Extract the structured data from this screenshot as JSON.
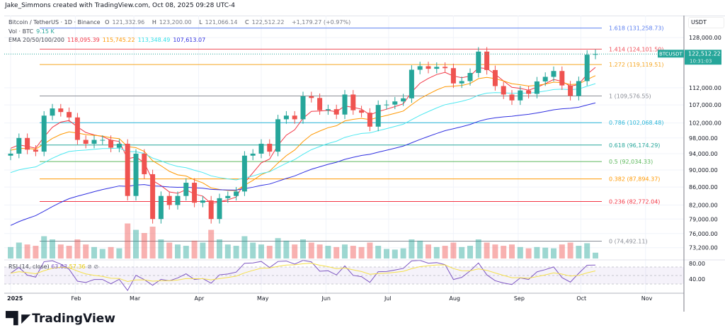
{
  "credit": "Jake_Simmons created with TradingView.com, Oct 08, 2025 09:28 UTC-4",
  "legend": {
    "symbol": "Bitcoin / TetherUS · 1D · Binance",
    "o_label": "O",
    "o": "121,332.96",
    "h_label": "H",
    "h": "123,200.00",
    "l_label": "L",
    "l": "121,066.14",
    "c_label": "C",
    "c": "122,512.22",
    "change": "+1,179.27 (+0.97%)",
    "vol_label": "Vol · BTC",
    "vol": "9.15 K",
    "ema_label": "EMA 20/50/100/200",
    "ema20": "118,095.39",
    "ema50": "115,745.22",
    "ema100": "113,348.49",
    "ema200": "107,613.07",
    "rsi_label": "RSI (14, close)",
    "rsi": "63.63",
    "rsi_ma": "57.36"
  },
  "colors": {
    "up": "#26a69a",
    "down": "#ef5350",
    "ema20": "#f23645",
    "ema50": "#ff9800",
    "ema100": "#4de8f0",
    "ema200": "#3030e0",
    "rsi": "#7e57c2",
    "rsi_ma": "#f5e04a"
  },
  "axis": {
    "currency": "USDT",
    "price_tag": "122,512.22",
    "countdown": "10:31:03",
    "ticker": "BTCUSDT",
    "brand": "TradingView"
  },
  "chart_data": {
    "type": "candlestick",
    "yscale": "log",
    "grid": true,
    "price_ticks": [
      "128,000.00",
      "112,000.00",
      "107,000.00",
      "102,000.00",
      "98,000.00",
      "94,000.00",
      "90,000.00",
      "86,000.00",
      "82,000.00",
      "79,000.00",
      "76,000.00",
      "73,200.00"
    ],
    "price_tick_values": [
      128000,
      112000,
      107000,
      102000,
      98000,
      94000,
      90000,
      86000,
      82000,
      79000,
      76000,
      73200
    ],
    "rsi_ticks": [
      "80.00",
      "40.00"
    ],
    "x_ticks": [
      "2025",
      "Feb",
      "Mar",
      "Apr",
      "May",
      "Jun",
      "Jul",
      "Aug",
      "Sep",
      "Oct",
      "Nov"
    ],
    "x_tick_dates": [
      "2025-01-01",
      "2025-02-01",
      "2025-03-01",
      "2025-04-01",
      "2025-05-01",
      "2025-06-01",
      "2025-07-01",
      "2025-08-01",
      "2025-09-01",
      "2025-10-01",
      "2025-11-01"
    ],
    "candle_interval_days": 4,
    "first_date": "2025-01-01",
    "closes": [
      94000,
      98000,
      95000,
      94500,
      104000,
      106000,
      105000,
      103500,
      97500,
      96500,
      97500,
      97500,
      95500,
      96500,
      84000,
      94000,
      89000,
      79000,
      84000,
      82000,
      84000,
      87000,
      82500,
      83000,
      79000,
      83500,
      84000,
      85000,
      93500,
      94000,
      96500,
      94500,
      103000,
      104000,
      103000,
      109500,
      109000,
      105500,
      105800,
      104300,
      110000,
      105500,
      104800,
      101000,
      107000,
      107100,
      108000,
      108900,
      117500,
      118600,
      117800,
      118400,
      118000,
      113300,
      114000,
      116500,
      123300,
      117400,
      112500,
      110000,
      108300,
      111200,
      110200,
      113900,
      115300,
      117100,
      112700,
      109600,
      114000,
      122300,
      122512
    ],
    "volumes_k": [
      18,
      25,
      22,
      20,
      35,
      30,
      22,
      20,
      30,
      22,
      18,
      15,
      18,
      16,
      55,
      45,
      40,
      50,
      30,
      25,
      22,
      20,
      28,
      25,
      45,
      30,
      22,
      20,
      35,
      25,
      22,
      20,
      32,
      28,
      22,
      30,
      25,
      22,
      20,
      18,
      22,
      20,
      18,
      25,
      20,
      15,
      14,
      16,
      30,
      28,
      22,
      18,
      20,
      25,
      18,
      20,
      30,
      25,
      22,
      20,
      22,
      18,
      16,
      18,
      17,
      16,
      22,
      25,
      20,
      24,
      9.15
    ],
    "fib_levels": [
      {
        "label": "1.618 (131,258.73)",
        "price": 131258.73,
        "color": "#5b7ff0"
      },
      {
        "label": "1.414 (124,101.50)",
        "price": 124101.5,
        "color": "#f0505a"
      },
      {
        "label": "1.272 (119,119.51)",
        "price": 119119.51,
        "color": "#f5a623"
      },
      {
        "label": "1 (109,576.55)",
        "price": 109576.55,
        "color": "#8a8d96"
      },
      {
        "label": "0.786 (102,068.48)",
        "price": 102068.48,
        "color": "#29b6d8"
      },
      {
        "label": "0.618 (96,174.29)",
        "price": 96174.29,
        "color": "#26a69a"
      },
      {
        "label": "0.5 (92,034.33)",
        "price": 92034.33,
        "color": "#5cb85c"
      },
      {
        "label": "0.382 (87,894.37)",
        "price": 87894.37,
        "color": "#ff9800"
      },
      {
        "label": "0.236 (82,772.04)",
        "price": 82772.04,
        "color": "#f23645"
      },
      {
        "label": "0 (74,492.11)",
        "price": 74492.11,
        "color": "#8a8d96"
      }
    ]
  }
}
